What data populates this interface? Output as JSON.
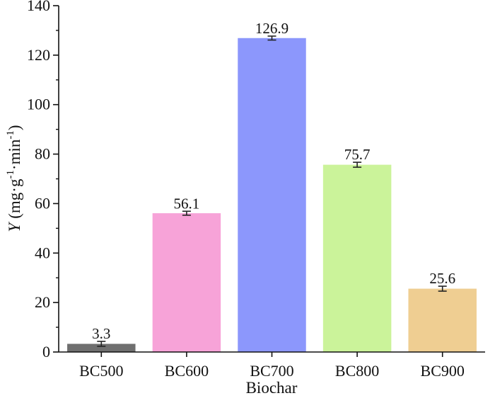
{
  "chart_data": {
    "type": "bar",
    "title": "",
    "xlabel": "Biochar",
    "ylabel": {
      "symbol": "Y",
      "open": "(mg·g",
      "sup1": "-1",
      "mid": "·min",
      "sup2": "-1",
      "close": ")"
    },
    "ylim": [
      0,
      140
    ],
    "yticks": [
      0,
      20,
      40,
      60,
      80,
      100,
      120,
      140
    ],
    "categories": [
      "BC500",
      "BC600",
      "BC700",
      "BC800",
      "BC900"
    ],
    "values": [
      3.3,
      56.1,
      126.9,
      75.7,
      25.6
    ],
    "errors": [
      1.0,
      0.8,
      0.8,
      1.0,
      1.0
    ],
    "value_labels": [
      "3.3",
      "56.1",
      "126.9",
      "75.7",
      "25.6"
    ],
    "colors": [
      "#6f6f6f",
      "#f7a3d8",
      "#8c97fc",
      "#cbf39a",
      "#efce92"
    ],
    "grid": false,
    "legend": "none"
  }
}
